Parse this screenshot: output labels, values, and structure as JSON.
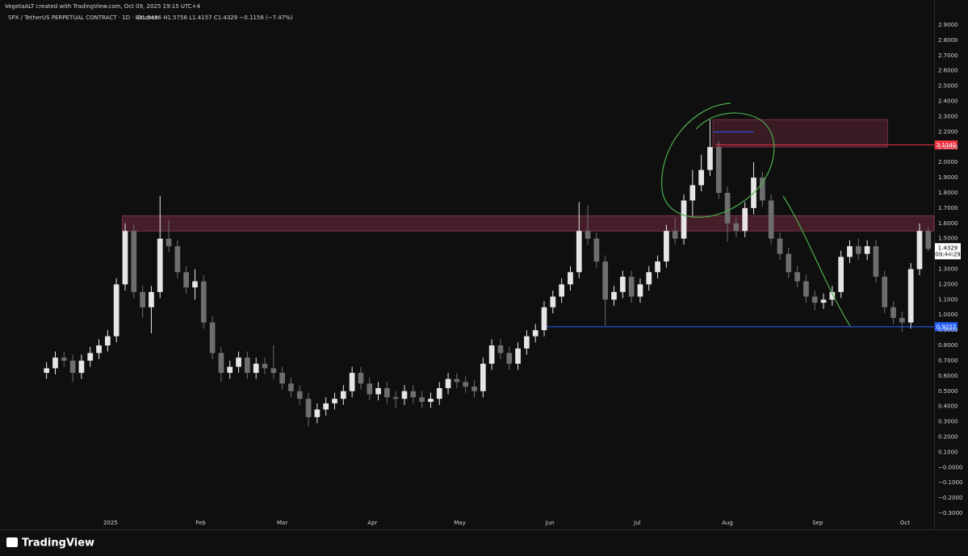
{
  "header": {
    "credit": "VegetaALT created with TradingView.com, Oct 09, 2025 19:15 UTC+4",
    "symbol": "SPX / TetherUS PERPETUAL CONTRACT · 1D · Binance",
    "ohlc": "O1.5486 H1.5758 L1.4157 C1.4329 −0.1156 (−7.47%)"
  },
  "footer": {
    "brand": "TradingView"
  },
  "chart_data": {
    "type": "candlestick",
    "up_color": "#e6e6e6",
    "down_color": "#6e6e6e",
    "x": [
      0,
      3,
      6,
      9,
      12,
      15,
      18,
      21,
      24,
      27,
      30,
      33,
      36,
      39,
      42,
      45,
      48,
      51,
      54,
      57,
      60,
      63,
      66,
      69,
      72,
      75,
      78,
      81,
      84,
      87,
      90,
      93,
      96,
      99,
      102,
      105,
      108,
      111,
      114,
      117,
      120,
      123,
      126,
      129,
      132,
      135,
      138,
      141,
      144,
      147,
      150,
      153,
      156,
      159,
      162,
      165,
      168,
      171,
      174,
      177,
      180,
      183,
      186,
      189,
      192,
      195,
      198,
      201,
      204,
      207,
      210,
      213,
      216,
      219,
      222,
      225,
      228,
      231,
      234,
      237,
      240,
      243,
      246,
      249,
      252,
      255,
      258,
      261,
      264,
      267,
      270,
      273,
      276,
      279,
      282,
      285,
      288,
      291,
      294,
      297,
      300,
      303
    ],
    "open": [
      0.62,
      0.65,
      0.72,
      0.7,
      0.62,
      0.7,
      0.75,
      0.8,
      0.86,
      1.2,
      1.55,
      1.15,
      1.05,
      1.15,
      1.5,
      1.45,
      1.28,
      1.18,
      1.22,
      0.95,
      0.75,
      0.62,
      0.66,
      0.72,
      0.62,
      0.68,
      0.65,
      0.62,
      0.55,
      0.5,
      0.45,
      0.33,
      0.38,
      0.42,
      0.45,
      0.5,
      0.62,
      0.55,
      0.48,
      0.52,
      0.46,
      0.45,
      0.5,
      0.46,
      0.43,
      0.45,
      0.52,
      0.58,
      0.56,
      0.53,
      0.5,
      0.68,
      0.8,
      0.75,
      0.68,
      0.78,
      0.86,
      0.9,
      1.05,
      1.12,
      1.2,
      1.28,
      1.55,
      1.5,
      1.35,
      1.1,
      1.15,
      1.25,
      1.12,
      1.2,
      1.28,
      1.35,
      1.55,
      1.5,
      1.75,
      1.85,
      1.95,
      2.1,
      1.8,
      1.6,
      1.55,
      1.7,
      1.9,
      1.75,
      1.5,
      1.4,
      1.28,
      1.22,
      1.12,
      1.08,
      1.1,
      1.15,
      1.38,
      1.45,
      1.4,
      1.45,
      1.25,
      1.05,
      0.98,
      0.95,
      1.3,
      1.5486
    ],
    "high": [
      0.69,
      0.76,
      0.76,
      0.74,
      0.74,
      0.79,
      0.84,
      0.9,
      1.24,
      1.6,
      1.59,
      1.19,
      1.19,
      1.78,
      1.62,
      1.49,
      1.32,
      1.3,
      1.26,
      0.99,
      0.79,
      0.7,
      0.76,
      0.76,
      0.72,
      0.72,
      0.8,
      0.66,
      0.59,
      0.54,
      0.49,
      0.42,
      0.46,
      0.49,
      0.54,
      0.66,
      0.66,
      0.59,
      0.56,
      0.56,
      0.5,
      0.54,
      0.54,
      0.5,
      0.49,
      0.56,
      0.62,
      0.62,
      0.6,
      0.57,
      0.72,
      0.84,
      0.84,
      0.79,
      0.82,
      0.9,
      0.94,
      1.09,
      1.16,
      1.24,
      1.32,
      1.74,
      1.72,
      1.54,
      1.39,
      1.19,
      1.29,
      1.29,
      1.24,
      1.32,
      1.39,
      1.59,
      1.64,
      1.79,
      1.95,
      2.05,
      2.28,
      2.14,
      1.84,
      1.64,
      1.74,
      2.0,
      1.94,
      1.79,
      1.54,
      1.44,
      1.32,
      1.26,
      1.16,
      1.14,
      1.19,
      1.42,
      1.49,
      1.5,
      1.49,
      1.49,
      1.29,
      1.09,
      1.02,
      1.34,
      1.6,
      1.5758
    ],
    "low": [
      0.58,
      0.61,
      0.66,
      0.56,
      0.58,
      0.66,
      0.71,
      0.76,
      0.82,
      1.16,
      1.11,
      0.98,
      0.88,
      1.11,
      1.41,
      1.24,
      1.14,
      1.1,
      0.91,
      0.71,
      0.56,
      0.58,
      0.62,
      0.58,
      0.58,
      0.61,
      0.58,
      0.51,
      0.46,
      0.41,
      0.27,
      0.29,
      0.34,
      0.38,
      0.41,
      0.46,
      0.51,
      0.44,
      0.44,
      0.42,
      0.39,
      0.41,
      0.42,
      0.39,
      0.39,
      0.41,
      0.48,
      0.52,
      0.49,
      0.46,
      0.46,
      0.64,
      0.71,
      0.64,
      0.64,
      0.74,
      0.82,
      0.86,
      1.01,
      1.08,
      1.16,
      1.24,
      1.46,
      1.31,
      0.93,
      1.06,
      1.11,
      1.08,
      1.08,
      1.16,
      1.24,
      1.31,
      1.46,
      1.46,
      1.65,
      1.81,
      1.91,
      1.76,
      1.48,
      1.51,
      1.51,
      1.66,
      1.71,
      1.46,
      1.36,
      1.24,
      1.18,
      1.08,
      1.03,
      1.04,
      1.06,
      1.11,
      1.34,
      1.36,
      1.36,
      1.21,
      1.01,
      0.94,
      0.89,
      0.91,
      1.26,
      1.4157
    ],
    "close": [
      0.65,
      0.72,
      0.7,
      0.62,
      0.7,
      0.75,
      0.8,
      0.86,
      1.2,
      1.55,
      1.15,
      1.05,
      1.15,
      1.5,
      1.45,
      1.28,
      1.18,
      1.22,
      0.95,
      0.75,
      0.62,
      0.66,
      0.72,
      0.62,
      0.68,
      0.65,
      0.62,
      0.55,
      0.5,
      0.45,
      0.33,
      0.38,
      0.42,
      0.45,
      0.5,
      0.62,
      0.55,
      0.48,
      0.52,
      0.46,
      0.45,
      0.5,
      0.46,
      0.43,
      0.45,
      0.52,
      0.58,
      0.56,
      0.53,
      0.5,
      0.68,
      0.8,
      0.75,
      0.68,
      0.78,
      0.86,
      0.9,
      1.05,
      1.12,
      1.2,
      1.28,
      1.55,
      1.5,
      1.35,
      1.1,
      1.15,
      1.25,
      1.12,
      1.2,
      1.28,
      1.35,
      1.55,
      1.5,
      1.75,
      1.85,
      1.95,
      2.1,
      1.8,
      1.6,
      1.55,
      1.7,
      1.9,
      1.75,
      1.5,
      1.4,
      1.28,
      1.22,
      1.12,
      1.08,
      1.1,
      1.15,
      1.38,
      1.45,
      1.4,
      1.45,
      1.25,
      1.05,
      0.98,
      0.95,
      1.3,
      1.55,
      1.4329
    ],
    "xlim": [
      -16,
      305
    ],
    "ylim": [
      -0.3,
      2.9
    ],
    "xticks": [
      {
        "value": 22,
        "label": "2025"
      },
      {
        "value": 53,
        "label": "Feb"
      },
      {
        "value": 81,
        "label": "Mar"
      },
      {
        "value": 112,
        "label": "Apr"
      },
      {
        "value": 142,
        "label": "May"
      },
      {
        "value": 173,
        "label": "Jun"
      },
      {
        "value": 203,
        "label": "Jul"
      },
      {
        "value": 234,
        "label": "Aug"
      },
      {
        "value": 265,
        "label": "Sep"
      },
      {
        "value": 295,
        "label": "Oct"
      }
    ],
    "yticks": [
      {
        "value": 2.9,
        "label": "2.9000"
      },
      {
        "value": 2.8,
        "label": "2.8000"
      },
      {
        "value": 2.7,
        "label": "2.7000"
      },
      {
        "value": 2.6,
        "label": "2.6000"
      },
      {
        "value": 2.5,
        "label": "2.5000"
      },
      {
        "value": 2.4,
        "label": "2.4000"
      },
      {
        "value": 2.3,
        "label": "2.3000"
      },
      {
        "value": 2.2,
        "label": "2.2000"
      },
      {
        "value": 2.1,
        "label": "2.1000"
      },
      {
        "value": 2.0,
        "label": "2.0000"
      },
      {
        "value": 1.9,
        "label": "1.9000"
      },
      {
        "value": 1.8,
        "label": "1.8000"
      },
      {
        "value": 1.7,
        "label": "1.7000"
      },
      {
        "value": 1.6,
        "label": "1.6000"
      },
      {
        "value": 1.5,
        "label": "1.5000"
      },
      {
        "value": 1.4,
        "label": "1.4000"
      },
      {
        "value": 1.3,
        "label": "1.3000"
      },
      {
        "value": 1.2,
        "label": "1.2000"
      },
      {
        "value": 1.1,
        "label": "1.1000"
      },
      {
        "value": 1.0,
        "label": "1.0000"
      },
      {
        "value": 0.9,
        "label": "0.9000"
      },
      {
        "value": 0.8,
        "label": "0.8000"
      },
      {
        "value": 0.7,
        "label": "0.7000"
      },
      {
        "value": 0.6,
        "label": "0.6000"
      },
      {
        "value": 0.5,
        "label": "0.5000"
      },
      {
        "value": 0.4,
        "label": "0.4000"
      },
      {
        "value": 0.3,
        "label": "0.3000"
      },
      {
        "value": 0.2,
        "label": "0.2000"
      },
      {
        "value": 0.1,
        "label": "0.1000"
      },
      {
        "value": 0,
        "label": "−0.0000"
      },
      {
        "value": -0.1,
        "label": "−0.1000"
      },
      {
        "value": -0.2,
        "label": "−0.2000"
      },
      {
        "value": -0.3,
        "label": "−0.3000"
      }
    ],
    "grid": false,
    "zones": [
      {
        "ylim": [
          1.55,
          1.65
        ],
        "xlim": [
          26,
          305
        ],
        "color": "#5a2433"
      },
      {
        "ylim": [
          2.1,
          2.28
        ],
        "xlim": [
          229,
          289
        ],
        "color": "#4a1f2b"
      }
    ],
    "levels": [
      {
        "value": 2.1141,
        "from": 230,
        "color": "#f23645"
      },
      {
        "value": 0.9227,
        "from": 172,
        "color": "#2962ff"
      },
      {
        "value": 2.2,
        "from": 229,
        "to": 243,
        "color": "#2962ff"
      }
    ],
    "last_price": {
      "value": 1.4329,
      "timer": "08:44:29"
    }
  }
}
